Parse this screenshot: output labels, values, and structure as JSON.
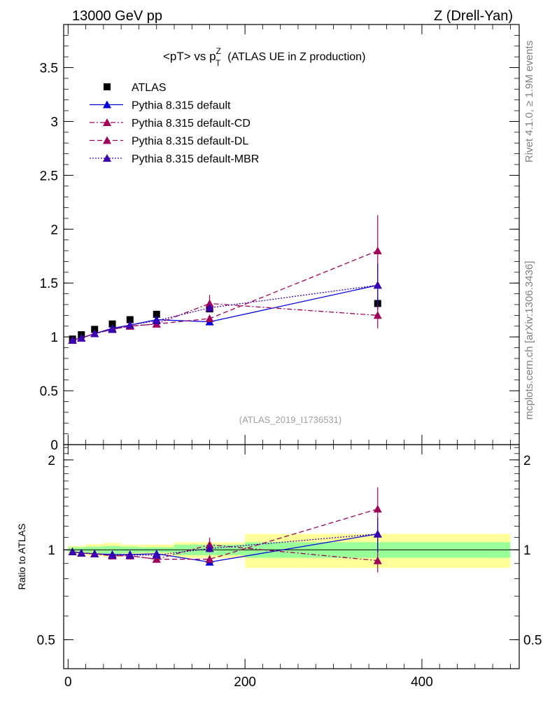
{
  "header": {
    "left": "13000 GeV pp",
    "right": "Z (Drell-Yan)",
    "side_rivet": "Rivet 4.1.0, ≥ 1.9M events",
    "side_mcplots": "mcplots.cern.ch [arXiv:1306.3436]",
    "analysis_tag": "(ATLAS_2019_I1736531)"
  },
  "colors": {
    "data": "#000000",
    "default": "#0000dd",
    "cd": "#a0005a",
    "dl": "#a0005a",
    "mbr": "#3a00b0",
    "band_inner": "#99ff99",
    "band_outer": "#ffff99"
  },
  "chart_data": [
    {
      "type": "scatter",
      "panel": "main",
      "title": "<pT> vs pT^Z (ATLAS UE in Z production)",
      "title_parts": {
        "main": "<pT> vs p",
        "sup": "Z",
        "sub": "T",
        "rest": "(ATLAS UE in Z production)"
      },
      "xlabel": "",
      "ylabel": "",
      "xlim": [
        -5,
        510
      ],
      "ylim": [
        0,
        3.9
      ],
      "yticks": [
        0,
        0.5,
        1,
        1.5,
        2,
        2.5,
        3,
        3.5
      ],
      "ytick_labels": [
        "0",
        "0.5",
        "1",
        "1.5",
        "2",
        "2.5",
        "3",
        "3.5"
      ],
      "legend_position": "top-left",
      "x": [
        5,
        15,
        30,
        50,
        70,
        100,
        160,
        350
      ],
      "series": [
        {
          "name": "ATLAS",
          "key": "data",
          "marker": "square",
          "line": "none",
          "values": [
            0.98,
            1.02,
            1.07,
            1.12,
            1.16,
            1.21,
            1.26,
            1.31
          ],
          "errors": [
            0.01,
            0.01,
            0.01,
            0.015,
            0.015,
            0.02,
            0.03,
            0.06
          ]
        },
        {
          "name": "Pythia 8.315 default",
          "key": "default",
          "marker": "triangle",
          "line": "solid",
          "values": [
            0.97,
            0.99,
            1.03,
            1.08,
            1.11,
            1.16,
            1.14,
            1.48
          ],
          "errors": [
            0.005,
            0.005,
            0.005,
            0.01,
            0.01,
            0.015,
            0.02,
            0.2
          ]
        },
        {
          "name": "Pythia 8.315 default-CD",
          "key": "cd",
          "marker": "triangle",
          "line": "dashdot",
          "values": [
            0.97,
            0.99,
            1.03,
            1.07,
            1.1,
            1.12,
            1.31,
            1.2
          ],
          "errors": [
            0.005,
            0.005,
            0.005,
            0.01,
            0.01,
            0.015,
            0.08,
            0.12
          ]
        },
        {
          "name": "Pythia 8.315 default-DL",
          "key": "dl",
          "marker": "triangle",
          "line": "dashed",
          "values": [
            0.97,
            0.99,
            1.03,
            1.07,
            1.1,
            1.12,
            1.17,
            1.8
          ],
          "errors": [
            0.005,
            0.005,
            0.005,
            0.01,
            0.01,
            0.015,
            0.03,
            0.33
          ]
        },
        {
          "name": "Pythia 8.315 default-MBR",
          "key": "mbr",
          "marker": "triangle",
          "line": "dotted",
          "values": [
            0.97,
            0.99,
            1.03,
            1.07,
            1.11,
            1.15,
            1.27,
            1.48
          ],
          "errors": [
            0.005,
            0.005,
            0.005,
            0.01,
            0.01,
            0.015,
            0.03,
            0.2
          ]
        }
      ]
    },
    {
      "type": "scatter",
      "panel": "ratio",
      "ylabel": "Ratio to ATLAS",
      "xlim": [
        -5,
        510
      ],
      "ylim": [
        0.4,
        2.25
      ],
      "log_y": true,
      "yticks": [
        0.5,
        1,
        2
      ],
      "ytick_labels": [
        "0.5",
        "1",
        "2"
      ],
      "xticks": [
        0,
        200,
        400
      ],
      "xtick_labels": [
        "0",
        "200",
        "400"
      ],
      "bands": {
        "x_edges": [
          0,
          10,
          20,
          40,
          60,
          80,
          120,
          200,
          500
        ],
        "inner": [
          0.02,
          0.02,
          0.025,
          0.03,
          0.025,
          0.02,
          0.04,
          0.06
        ],
        "outer": [
          0.03,
          0.03,
          0.045,
          0.055,
          0.04,
          0.04,
          0.06,
          0.13
        ]
      },
      "x": [
        5,
        15,
        30,
        50,
        70,
        100,
        160,
        350
      ],
      "series": [
        {
          "name": "Pythia 8.315 default",
          "key": "default",
          "line": "solid",
          "values": [
            0.985,
            0.975,
            0.97,
            0.965,
            0.965,
            0.97,
            0.91,
            1.13
          ],
          "errors": [
            0.005,
            0.005,
            0.005,
            0.01,
            0.01,
            0.015,
            0.02,
            0.15
          ]
        },
        {
          "name": "Pythia 8.315 default-CD",
          "key": "cd",
          "line": "dashdot",
          "values": [
            0.985,
            0.975,
            0.97,
            0.955,
            0.955,
            0.93,
            1.04,
            0.92
          ],
          "errors": [
            0.005,
            0.005,
            0.005,
            0.01,
            0.01,
            0.015,
            0.06,
            0.08
          ]
        },
        {
          "name": "Pythia 8.315 default-DL",
          "key": "dl",
          "line": "dashed",
          "values": [
            0.985,
            0.975,
            0.97,
            0.955,
            0.955,
            0.93,
            0.93,
            1.37
          ],
          "errors": [
            0.005,
            0.005,
            0.005,
            0.01,
            0.01,
            0.015,
            0.03,
            0.25
          ]
        },
        {
          "name": "Pythia 8.315 default-MBR",
          "key": "mbr",
          "line": "dotted",
          "values": [
            0.985,
            0.975,
            0.97,
            0.96,
            0.96,
            0.96,
            1.01,
            1.13
          ],
          "errors": [
            0.005,
            0.005,
            0.005,
            0.01,
            0.01,
            0.015,
            0.03,
            0.15
          ]
        }
      ]
    }
  ]
}
